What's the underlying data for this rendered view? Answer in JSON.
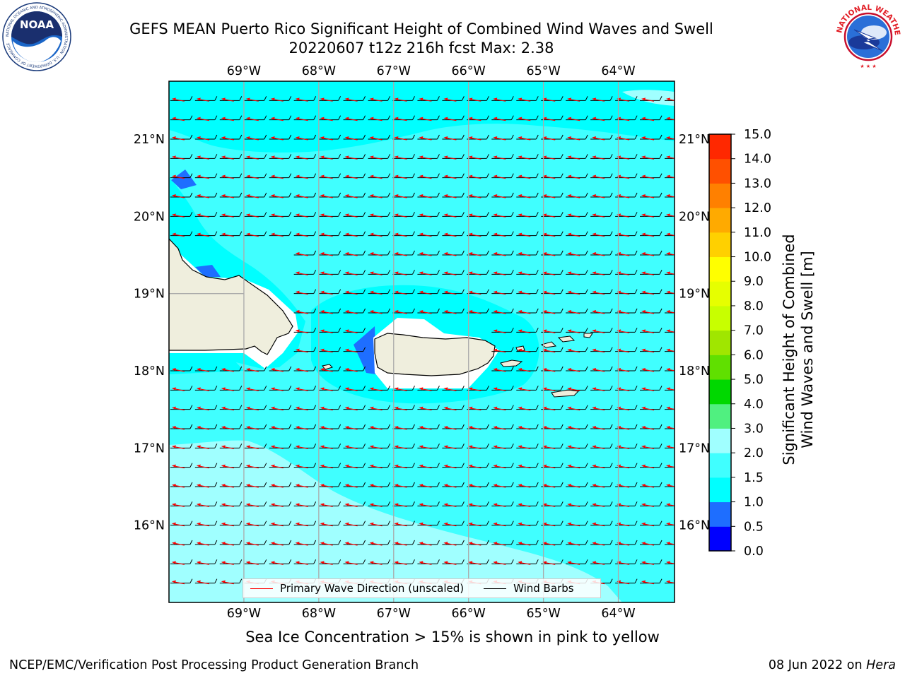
{
  "header": {
    "title_line_1": "GEFS MEAN Puerto Rico Significant Height of Combined Wind Waves and Swell",
    "title_line_2": "20220607 t12z 216h fcst   Max: 2.38"
  },
  "logos": {
    "left": {
      "icon": "noaa-logo-icon",
      "text": "NOAA",
      "ring_text": "NATIONAL OCEANIC AND ATMOSPHERIC ADMINISTRATION · U.S. DEPARTMENT OF COMMERCE"
    },
    "right": {
      "icon": "nws-logo-icon",
      "ring_text": "NATIONAL WEATHER SERVICE"
    }
  },
  "map": {
    "lon_labels": [
      "69°W",
      "68°W",
      "67°W",
      "66°W",
      "65°W",
      "64°W"
    ],
    "lat_labels": [
      "21°N",
      "20°N",
      "19°N",
      "18°N",
      "17°N",
      "16°N"
    ],
    "lon_range": [
      -70.0,
      -63.25
    ],
    "lat_range": [
      15.0,
      21.75
    ],
    "land_color": "#efeedd",
    "grid_color": "#aaaaaa"
  },
  "legend": {
    "primary_wave": "Primary Wave Direction (unscaled)",
    "wind_barbs": "Wind Barbs",
    "primary_wave_color": "#ff0000",
    "wind_barbs_color": "#000000"
  },
  "colorbar": {
    "title_line_1": "Significant Height of Combined",
    "title_line_2": "Wind Waves and Swell [m]",
    "tick_labels": [
      "0.0",
      "0.5",
      "1.0",
      "1.5",
      "2.0",
      "3.0",
      "4.0",
      "5.0",
      "6.0",
      "7.0",
      "8.0",
      "9.0",
      "10.0",
      "11.0",
      "12.0",
      "13.0",
      "14.0",
      "15.0"
    ],
    "colors": [
      "#0000ff",
      "#1e6eff",
      "#00ffff",
      "#40ffff",
      "#a0ffff",
      "#50f080",
      "#00d800",
      "#60e000",
      "#a0e600",
      "#c8ff00",
      "#e6ff00",
      "#ffff00",
      "#ffd000",
      "#ffaa00",
      "#ff8000",
      "#ff5000",
      "#ff2800"
    ]
  },
  "notes": {
    "sea_ice": "Sea Ice Concentration > 15% is shown in pink to yellow"
  },
  "footer": {
    "left": "NCEP/EMC/Verification Post Processing Product Generation Branch",
    "right_date": "08 Jun 2022 on",
    "right_host": "Hera"
  }
}
